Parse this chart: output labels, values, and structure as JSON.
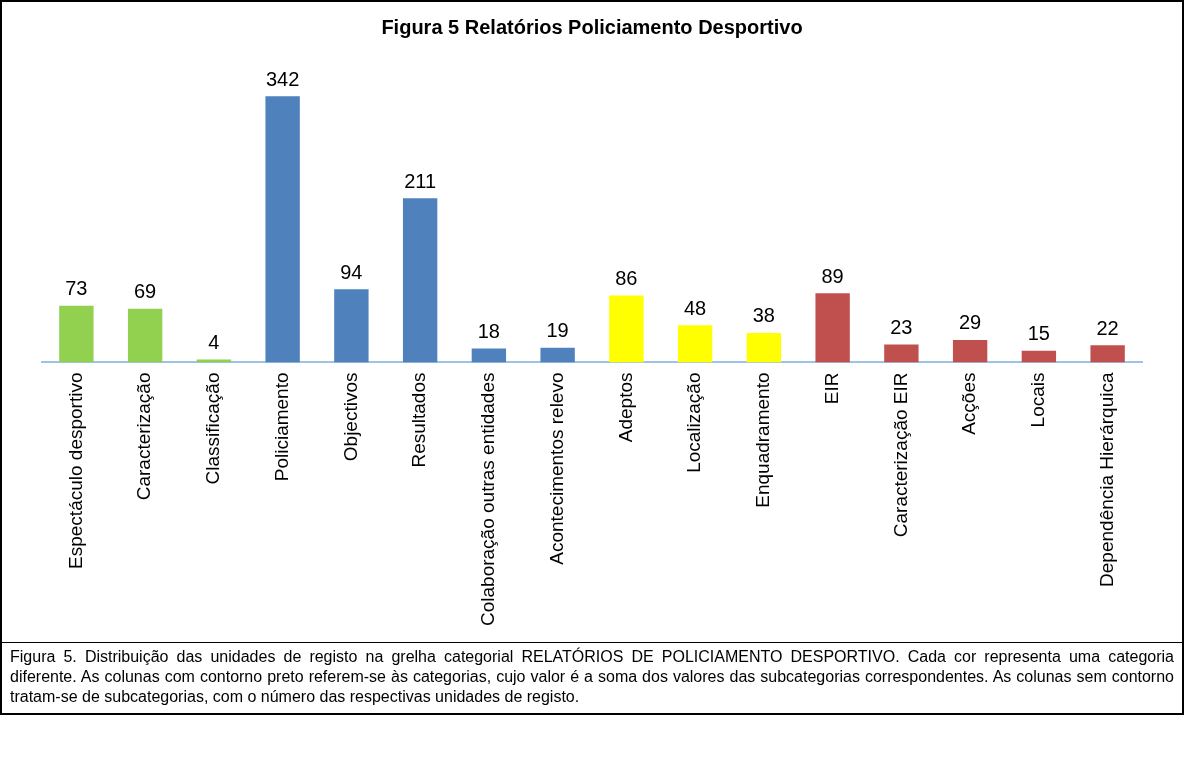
{
  "chart_data": {
    "type": "bar",
    "title": "Figura 5 Relatórios Policiamento Desportivo",
    "categories": [
      "Espectáculo desportivo",
      "Caracterização",
      "Classificação",
      "Policiamento",
      "Objectivos",
      "Resultados",
      "Colaboração outras entidades",
      "Acontecimentos relevo",
      "Adeptos",
      "Localização",
      "Enquadramento",
      "EIR",
      "Caracterização EIR",
      "Acções",
      "Locais",
      "Dependência Hierárquica"
    ],
    "values": [
      73,
      69,
      4,
      342,
      94,
      211,
      18,
      19,
      86,
      48,
      38,
      89,
      23,
      29,
      15,
      22
    ],
    "colors": [
      "#92d050",
      "#92d050",
      "#92d050",
      "#4f81bd",
      "#4f81bd",
      "#4f81bd",
      "#4f81bd",
      "#4f81bd",
      "#ffff00",
      "#ffff00",
      "#ffff00",
      "#c0504d",
      "#c0504d",
      "#c0504d",
      "#c0504d",
      "#c0504d"
    ],
    "data_labels": true,
    "grid": false,
    "legend": false,
    "tick_labels": "x",
    "annotations": [
      "Figura 5. Distribuição das unidades de registo na grelha categorial RELATÓRIOS DE POLICIAMENTO DESPORTIVO. Cada cor representa uma categoria diferente. As colunas com contorno preto referem-se às categorias, cujo valor é a soma dos valores das subcategorias correspondentes. As colunas sem contorno tratam-se de subcategorias, com o número das respectivas unidades de registo."
    ]
  }
}
